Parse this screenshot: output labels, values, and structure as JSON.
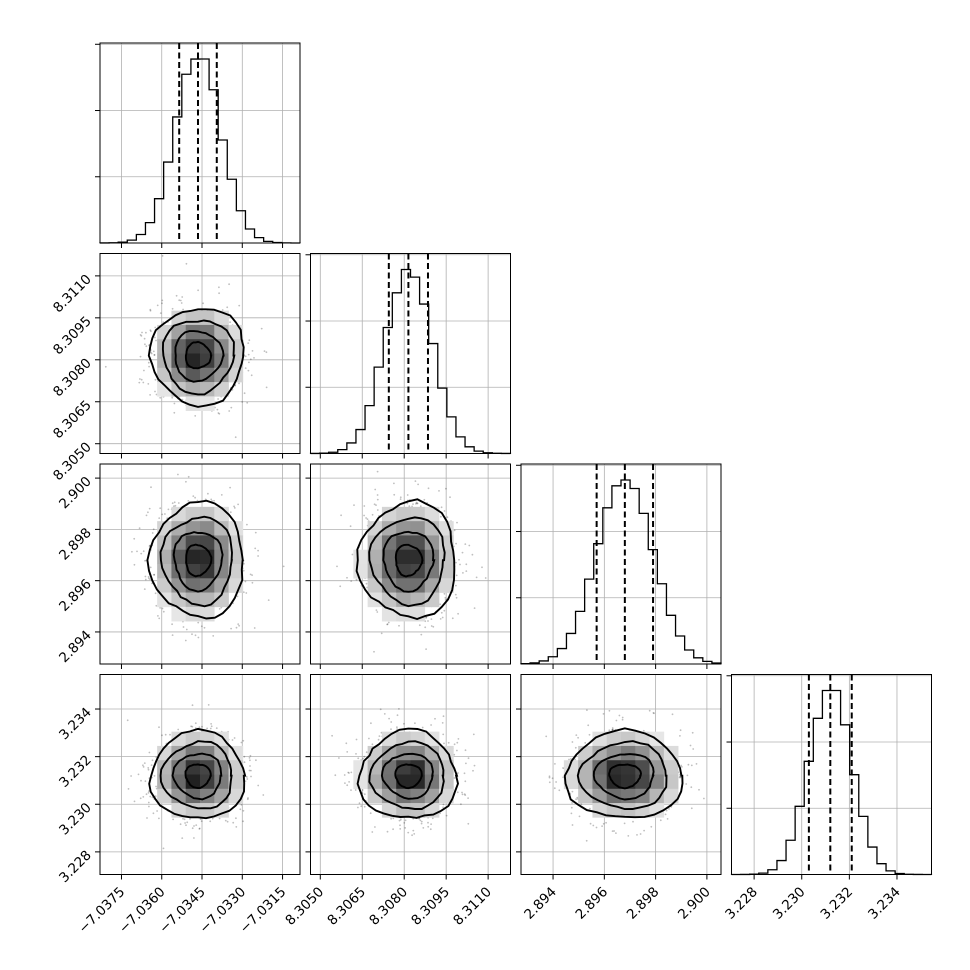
{
  "chart_data": {
    "type": "corner",
    "parameters": [
      {
        "mean": -7.03465,
        "sigma": 0.00085,
        "range": [
          -7.0383,
          -7.03085
        ],
        "ticks": [
          -7.0375,
          -7.036,
          -7.0345,
          -7.033,
          -7.0315
        ],
        "tick_labels": [
          "−7.0375",
          "−7.0360",
          "−7.0345",
          "−7.0330",
          "−7.0315"
        ],
        "quantiles": [
          -7.03535,
          -7.03465,
          -7.03395
        ]
      },
      {
        "mean": 8.30815,
        "sigma": 0.00085,
        "range": [
          8.30465,
          8.3118
        ],
        "ticks": [
          8.305,
          8.3065,
          8.308,
          8.3095,
          8.311
        ],
        "tick_labels": [
          "8.3050",
          "8.3065",
          "8.3080",
          "8.3095",
          "8.3110"
        ],
        "quantiles": [
          8.30745,
          8.30815,
          8.30885
        ]
      },
      {
        "mean": 2.8968,
        "sigma": 0.0011,
        "range": [
          2.89275,
          2.90055
        ],
        "ticks": [
          2.894,
          2.896,
          2.898,
          2.9
        ],
        "tick_labels": [
          "2.894",
          "2.896",
          "2.898",
          "2.900"
        ],
        "quantiles": [
          2.8957,
          2.8968,
          2.8979
        ]
      },
      {
        "mean": 3.2312,
        "sigma": 0.0009,
        "range": [
          3.22705,
          3.23545
        ],
        "ticks": [
          3.228,
          3.23,
          3.232,
          3.234
        ],
        "tick_labels": [
          "3.228",
          "3.230",
          "3.232",
          "3.234"
        ],
        "quantiles": [
          3.2303,
          3.2312,
          3.2321
        ]
      }
    ],
    "hist_max_fraction": 0.92,
    "colors": {
      "line": "#000000",
      "grid": "#b0b0b0",
      "scatter": "#000000"
    }
  }
}
